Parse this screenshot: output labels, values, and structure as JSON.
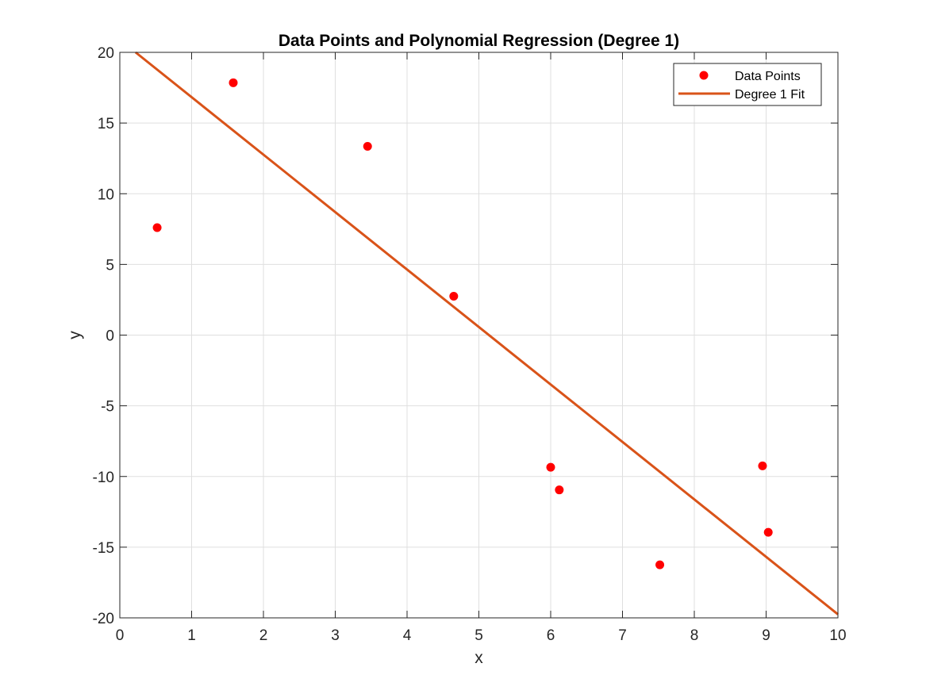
{
  "chart_data": {
    "type": "scatter",
    "title": "Data Points and Polynomial Regression (Degree 1)",
    "xlabel": "x",
    "ylabel": "y",
    "xlim": [
      0,
      10
    ],
    "ylim": [
      -20,
      20
    ],
    "x_ticks": [
      0,
      1,
      2,
      3,
      4,
      5,
      6,
      7,
      8,
      9,
      10
    ],
    "y_ticks": [
      -20,
      -15,
      -10,
      -5,
      0,
      5,
      10,
      15,
      20
    ],
    "grid": true,
    "legend_position": "top-right",
    "legend": [
      "Data Points",
      "Degree 1 Fit"
    ],
    "series": [
      {
        "name": "Data Points",
        "kind": "scatter",
        "color": "#ff0000",
        "points": [
          {
            "x": 0.52,
            "y": 7.6
          },
          {
            "x": 1.58,
            "y": 17.85
          },
          {
            "x": 3.45,
            "y": 13.35
          },
          {
            "x": 4.65,
            "y": 2.75
          },
          {
            "x": 6.0,
            "y": -9.35
          },
          {
            "x": 6.12,
            "y": -10.95
          },
          {
            "x": 7.52,
            "y": -16.25
          },
          {
            "x": 8.95,
            "y": -9.25
          },
          {
            "x": 9.03,
            "y": -13.95
          }
        ]
      },
      {
        "name": "Degree 1 Fit",
        "kind": "line",
        "color": "#d95319",
        "points": [
          {
            "x": 0.22,
            "y": 20.0
          },
          {
            "x": 10.0,
            "y": -19.75
          }
        ]
      }
    ]
  }
}
